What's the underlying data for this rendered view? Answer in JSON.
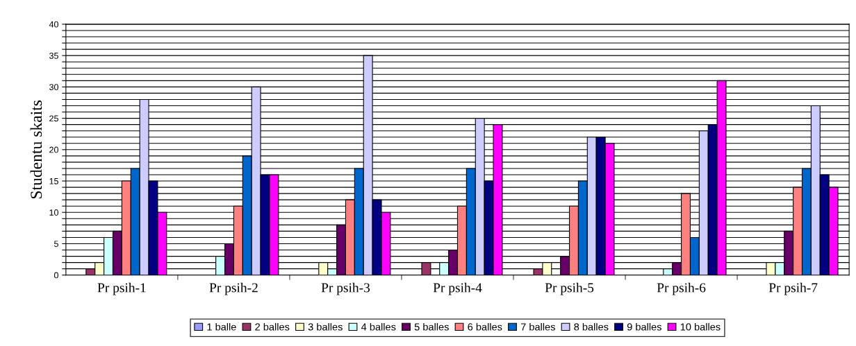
{
  "chart_data": {
    "type": "bar",
    "ylabel": "Studentu skaits",
    "categories": [
      "Pr psih-1",
      "Pr psih-2",
      "Pr psih-3",
      "Pr psih-4",
      "Pr psih-5",
      "Pr psih-6",
      "Pr psih-7"
    ],
    "series": [
      {
        "name": "1 balle",
        "color": "#9999ff",
        "values": [
          0,
          0,
          0,
          0,
          0,
          0,
          0
        ]
      },
      {
        "name": "2 balles",
        "color": "#993366",
        "values": [
          1,
          0,
          0,
          2,
          1,
          0,
          0
        ]
      },
      {
        "name": "3 balles",
        "color": "#ffffcc",
        "values": [
          2,
          0,
          2,
          0,
          2,
          0,
          2
        ]
      },
      {
        "name": "4 balles",
        "color": "#ccffff",
        "values": [
          6,
          3,
          1,
          2,
          0,
          1,
          2
        ]
      },
      {
        "name": "5 balles",
        "color": "#660066",
        "values": [
          7,
          5,
          8,
          4,
          3,
          2,
          7
        ]
      },
      {
        "name": "6 balles",
        "color": "#ff8080",
        "values": [
          15,
          11,
          12,
          11,
          11,
          13,
          14
        ]
      },
      {
        "name": "7 balles",
        "color": "#0066cc",
        "values": [
          17,
          19,
          17,
          17,
          15,
          6,
          17
        ]
      },
      {
        "name": "8 balles",
        "color": "#ccccff",
        "values": [
          28,
          30,
          35,
          25,
          22,
          23,
          27
        ]
      },
      {
        "name": "9 balles",
        "color": "#000080",
        "values": [
          15,
          16,
          12,
          15,
          22,
          24,
          16
        ]
      },
      {
        "name": "10 balles",
        "color": "#ff00ff",
        "values": [
          10,
          16,
          10,
          24,
          21,
          31,
          14
        ]
      }
    ],
    "ylim": [
      0,
      40
    ],
    "yticks": [
      0,
      {
        "value": 1,
        "label": null
      },
      {
        "value": 2,
        "label": null
      },
      {
        "value": 3,
        "label": null
      },
      {
        "value": 4,
        "label": null
      },
      5,
      {
        "value": 6,
        "label": null
      },
      {
        "value": 7,
        "label": null
      },
      {
        "value": 8,
        "label": null
      },
      {
        "value": 9,
        "label": null
      },
      10,
      {
        "value": 11,
        "label": null
      },
      {
        "value": 12,
        "label": null
      },
      {
        "value": 13,
        "label": null
      },
      {
        "value": 14,
        "label": null
      },
      15,
      {
        "value": 16,
        "label": null
      },
      {
        "value": 17,
        "label": null
      },
      {
        "value": 18,
        "label": null
      },
      {
        "value": 19,
        "label": null
      },
      20,
      {
        "value": 21,
        "label": null
      },
      {
        "value": 22,
        "label": null
      },
      {
        "value": 23,
        "label": null
      },
      {
        "value": 24,
        "label": null
      },
      25,
      {
        "value": 26,
        "label": null
      },
      {
        "value": 27,
        "label": null
      },
      {
        "value": 28,
        "label": null
      },
      {
        "value": 29,
        "label": null
      },
      30,
      {
        "value": 31,
        "label": null
      },
      {
        "value": 32,
        "label": null
      },
      {
        "value": 33,
        "label": null
      },
      {
        "value": 34,
        "label": null
      },
      35,
      {
        "value": 36,
        "label": null
      },
      {
        "value": 37,
        "label": null
      },
      {
        "value": 38,
        "label": null
      },
      {
        "value": 39,
        "label": null
      },
      40
    ],
    "grid": "y",
    "legend": "bottom"
  }
}
